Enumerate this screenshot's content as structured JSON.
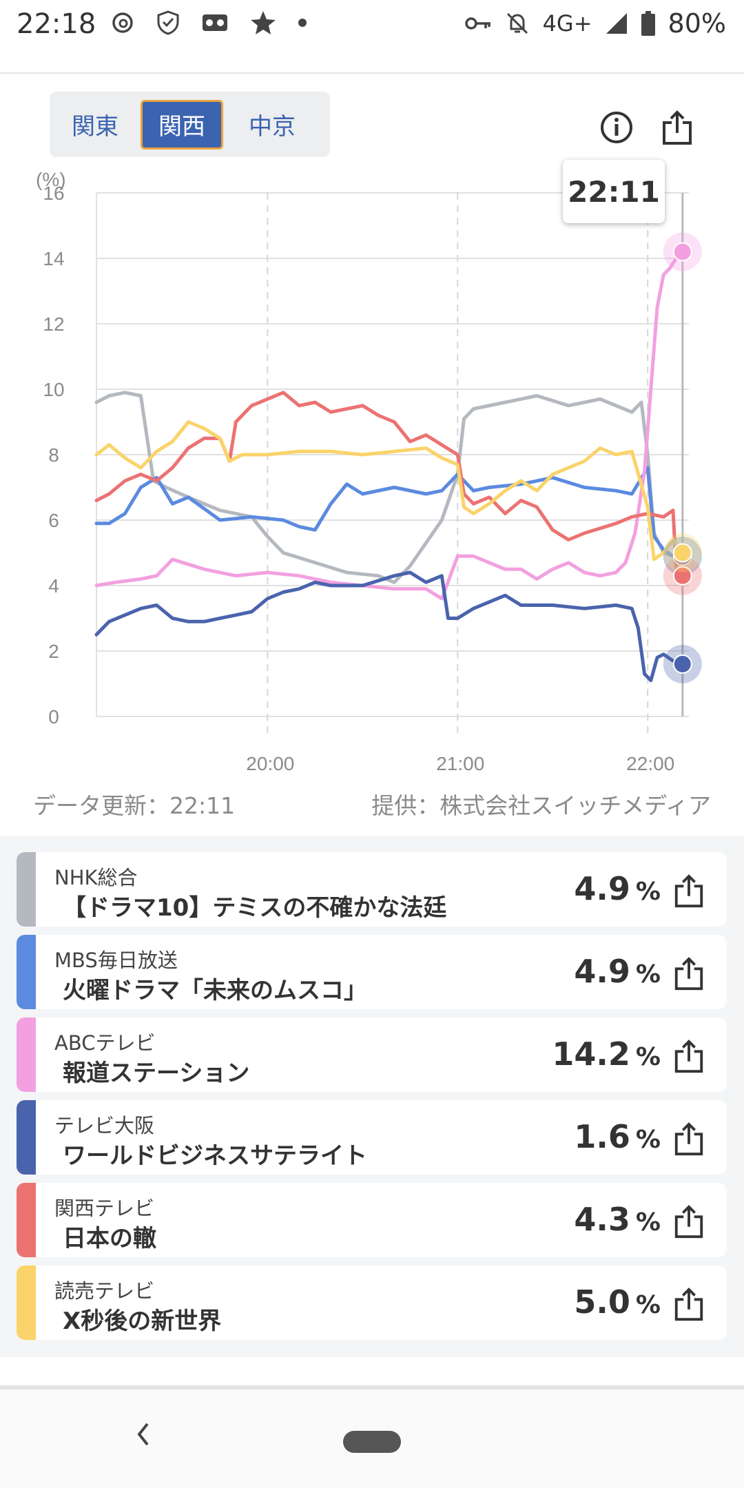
{
  "status_bar": {
    "time": "22:18",
    "network": "4G+",
    "battery": "80%",
    "icons": [
      "threads-icon",
      "shield-check-icon",
      "voicemail-icon",
      "star-icon",
      "dot-icon",
      "key-icon",
      "bell-off-icon",
      "signal-icon",
      "battery-icon"
    ]
  },
  "region_tabs": [
    {
      "label": "関東"
    },
    {
      "label": "関西"
    },
    {
      "label": "中京"
    }
  ],
  "selected_region": "関西",
  "chart_tooltip": "22:11",
  "meta": {
    "updated": "データ更新：22:11",
    "provider": "提供：株式会社スイッチメディア"
  },
  "chart_data": {
    "type": "line",
    "ylabel": "(%)",
    "ylim": [
      0,
      16
    ],
    "yticks": [
      0,
      2,
      4,
      6,
      8,
      10,
      12,
      14,
      16
    ],
    "xtick_labels": [
      "20:00",
      "21:00",
      "22:00"
    ],
    "x_range": [
      "19:06",
      "22:11"
    ],
    "grid": true,
    "series": [
      {
        "name": "NHK総合",
        "color": "#b4b8bf",
        "points": [
          [
            "19:06",
            9.6
          ],
          [
            "19:10",
            9.8
          ],
          [
            "19:15",
            9.9
          ],
          [
            "19:20",
            9.8
          ],
          [
            "19:24",
            7.2
          ],
          [
            "19:28",
            7.0
          ],
          [
            "19:35",
            6.7
          ],
          [
            "19:45",
            6.3
          ],
          [
            "19:55",
            6.1
          ],
          [
            "20:00",
            5.5
          ],
          [
            "20:05",
            5.0
          ],
          [
            "20:15",
            4.7
          ],
          [
            "20:25",
            4.4
          ],
          [
            "20:35",
            4.3
          ],
          [
            "20:40",
            4.1
          ],
          [
            "20:45",
            4.6
          ],
          [
            "20:50",
            5.3
          ],
          [
            "20:55",
            6.0
          ],
          [
            "21:00",
            7.4
          ],
          [
            "21:02",
            9.1
          ],
          [
            "21:05",
            9.4
          ],
          [
            "21:15",
            9.6
          ],
          [
            "21:25",
            9.8
          ],
          [
            "21:35",
            9.5
          ],
          [
            "21:45",
            9.7
          ],
          [
            "21:55",
            9.3
          ],
          [
            "21:58",
            9.6
          ],
          [
            "22:00",
            8.0
          ],
          [
            "22:02",
            5.6
          ],
          [
            "22:05",
            5.0
          ],
          [
            "22:08",
            4.9
          ],
          [
            "22:11",
            4.9
          ]
        ]
      },
      {
        "name": "MBS毎日放送",
        "color": "#5b8ae0",
        "points": [
          [
            "19:06",
            5.9
          ],
          [
            "19:10",
            5.9
          ],
          [
            "19:15",
            6.2
          ],
          [
            "19:20",
            7.0
          ],
          [
            "19:25",
            7.3
          ],
          [
            "19:30",
            6.5
          ],
          [
            "19:35",
            6.7
          ],
          [
            "19:45",
            6.0
          ],
          [
            "19:55",
            6.1
          ],
          [
            "20:05",
            6.0
          ],
          [
            "20:10",
            5.8
          ],
          [
            "20:15",
            5.7
          ],
          [
            "20:20",
            6.5
          ],
          [
            "20:25",
            7.1
          ],
          [
            "20:30",
            6.8
          ],
          [
            "20:40",
            7.0
          ],
          [
            "20:50",
            6.8
          ],
          [
            "20:55",
            6.9
          ],
          [
            "21:00",
            7.4
          ],
          [
            "21:05",
            6.9
          ],
          [
            "21:10",
            7.0
          ],
          [
            "21:20",
            7.1
          ],
          [
            "21:30",
            7.3
          ],
          [
            "21:40",
            7.0
          ],
          [
            "21:50",
            6.9
          ],
          [
            "21:55",
            6.8
          ],
          [
            "22:00",
            7.6
          ],
          [
            "22:02",
            5.5
          ],
          [
            "22:05",
            5.1
          ],
          [
            "22:08",
            4.9
          ],
          [
            "22:11",
            4.9
          ]
        ]
      },
      {
        "name": "ABCテレビ",
        "color": "#f2a0e0",
        "points": [
          [
            "19:06",
            4.0
          ],
          [
            "19:12",
            4.1
          ],
          [
            "19:20",
            4.2
          ],
          [
            "19:25",
            4.3
          ],
          [
            "19:30",
            4.8
          ],
          [
            "19:40",
            4.5
          ],
          [
            "19:50",
            4.3
          ],
          [
            "20:00",
            4.4
          ],
          [
            "20:10",
            4.3
          ],
          [
            "20:20",
            4.1
          ],
          [
            "20:30",
            4.0
          ],
          [
            "20:40",
            3.9
          ],
          [
            "20:50",
            3.9
          ],
          [
            "20:55",
            3.6
          ],
          [
            "21:00",
            4.9
          ],
          [
            "21:05",
            4.9
          ],
          [
            "21:10",
            4.7
          ],
          [
            "21:15",
            4.5
          ],
          [
            "21:20",
            4.5
          ],
          [
            "21:25",
            4.2
          ],
          [
            "21:30",
            4.5
          ],
          [
            "21:35",
            4.7
          ],
          [
            "21:40",
            4.4
          ],
          [
            "21:45",
            4.3
          ],
          [
            "21:50",
            4.4
          ],
          [
            "21:53",
            4.7
          ],
          [
            "21:56",
            5.6
          ],
          [
            "21:59",
            7.5
          ],
          [
            "22:01",
            10.0
          ],
          [
            "22:03",
            12.5
          ],
          [
            "22:05",
            13.5
          ],
          [
            "22:07",
            13.7
          ],
          [
            "22:09",
            14.0
          ],
          [
            "22:11",
            14.2
          ]
        ]
      },
      {
        "name": "テレビ大阪",
        "color": "#4a63ad",
        "points": [
          [
            "19:06",
            2.5
          ],
          [
            "19:10",
            2.9
          ],
          [
            "19:15",
            3.1
          ],
          [
            "19:20",
            3.3
          ],
          [
            "19:25",
            3.4
          ],
          [
            "19:30",
            3.0
          ],
          [
            "19:35",
            2.9
          ],
          [
            "19:40",
            2.9
          ],
          [
            "19:45",
            3.0
          ],
          [
            "19:50",
            3.1
          ],
          [
            "19:55",
            3.2
          ],
          [
            "20:00",
            3.6
          ],
          [
            "20:05",
            3.8
          ],
          [
            "20:10",
            3.9
          ],
          [
            "20:15",
            4.1
          ],
          [
            "20:20",
            4.0
          ],
          [
            "20:30",
            4.0
          ],
          [
            "20:40",
            4.3
          ],
          [
            "20:45",
            4.4
          ],
          [
            "20:50",
            4.1
          ],
          [
            "20:55",
            4.3
          ],
          [
            "20:57",
            3.0
          ],
          [
            "21:00",
            3.0
          ],
          [
            "21:05",
            3.3
          ],
          [
            "21:10",
            3.5
          ],
          [
            "21:15",
            3.7
          ],
          [
            "21:20",
            3.4
          ],
          [
            "21:30",
            3.4
          ],
          [
            "21:40",
            3.3
          ],
          [
            "21:50",
            3.4
          ],
          [
            "21:55",
            3.3
          ],
          [
            "21:57",
            2.7
          ],
          [
            "21:59",
            1.3
          ],
          [
            "22:01",
            1.1
          ],
          [
            "22:03",
            1.8
          ],
          [
            "22:05",
            1.9
          ],
          [
            "22:08",
            1.7
          ],
          [
            "22:11",
            1.6
          ]
        ]
      },
      {
        "name": "関西テレビ",
        "color": "#ec7272",
        "points": [
          [
            "19:06",
            6.6
          ],
          [
            "19:10",
            6.8
          ],
          [
            "19:15",
            7.2
          ],
          [
            "19:20",
            7.4
          ],
          [
            "19:25",
            7.2
          ],
          [
            "19:30",
            7.6
          ],
          [
            "19:35",
            8.2
          ],
          [
            "19:40",
            8.5
          ],
          [
            "19:45",
            8.5
          ],
          [
            "19:48",
            7.8
          ],
          [
            "19:50",
            9.0
          ],
          [
            "19:55",
            9.5
          ],
          [
            "20:00",
            9.7
          ],
          [
            "20:05",
            9.9
          ],
          [
            "20:10",
            9.5
          ],
          [
            "20:15",
            9.6
          ],
          [
            "20:20",
            9.3
          ],
          [
            "20:30",
            9.5
          ],
          [
            "20:35",
            9.2
          ],
          [
            "20:40",
            9.0
          ],
          [
            "20:45",
            8.4
          ],
          [
            "20:50",
            8.6
          ],
          [
            "20:55",
            8.3
          ],
          [
            "21:00",
            8.0
          ],
          [
            "21:02",
            6.8
          ],
          [
            "21:05",
            6.5
          ],
          [
            "21:10",
            6.7
          ],
          [
            "21:15",
            6.2
          ],
          [
            "21:20",
            6.6
          ],
          [
            "21:25",
            6.4
          ],
          [
            "21:30",
            5.7
          ],
          [
            "21:35",
            5.4
          ],
          [
            "21:40",
            5.6
          ],
          [
            "21:50",
            5.9
          ],
          [
            "21:55",
            6.1
          ],
          [
            "22:00",
            6.2
          ],
          [
            "22:05",
            6.1
          ],
          [
            "22:08",
            6.3
          ],
          [
            "22:09",
            4.5
          ],
          [
            "22:11",
            4.3
          ]
        ]
      },
      {
        "name": "読売テレビ",
        "color": "#fad36a",
        "points": [
          [
            "19:06",
            8.0
          ],
          [
            "19:10",
            8.3
          ],
          [
            "19:15",
            7.9
          ],
          [
            "19:20",
            7.6
          ],
          [
            "19:25",
            8.1
          ],
          [
            "19:30",
            8.4
          ],
          [
            "19:35",
            9.0
          ],
          [
            "19:40",
            8.8
          ],
          [
            "19:45",
            8.5
          ],
          [
            "19:48",
            7.8
          ],
          [
            "19:52",
            8.0
          ],
          [
            "20:00",
            8.0
          ],
          [
            "20:10",
            8.1
          ],
          [
            "20:20",
            8.1
          ],
          [
            "20:30",
            8.0
          ],
          [
            "20:40",
            8.1
          ],
          [
            "20:50",
            8.2
          ],
          [
            "20:55",
            7.9
          ],
          [
            "21:00",
            7.7
          ],
          [
            "21:02",
            6.4
          ],
          [
            "21:05",
            6.2
          ],
          [
            "21:10",
            6.5
          ],
          [
            "21:15",
            6.9
          ],
          [
            "21:20",
            7.2
          ],
          [
            "21:25",
            6.9
          ],
          [
            "21:30",
            7.4
          ],
          [
            "21:40",
            7.8
          ],
          [
            "21:45",
            8.2
          ],
          [
            "21:50",
            8.0
          ],
          [
            "21:55",
            8.1
          ],
          [
            "22:00",
            6.4
          ],
          [
            "22:02",
            4.8
          ],
          [
            "22:05",
            5.0
          ],
          [
            "22:08",
            5.4
          ],
          [
            "22:11",
            5.0
          ]
        ]
      }
    ]
  },
  "programs": [
    {
      "station": "NHK総合",
      "title": "【ドラマ10】テミスの不確かな法廷",
      "rating": "4.9",
      "unit": "%",
      "color": "#b4b8bf"
    },
    {
      "station": "MBS毎日放送",
      "title": "火曜ドラマ「未来のムスコ」",
      "rating": "4.9",
      "unit": "%",
      "color": "#5b8ae0"
    },
    {
      "station": "ABCテレビ",
      "title": "報道ステーション",
      "rating": "14.2",
      "unit": "%",
      "color": "#f2a0e0"
    },
    {
      "station": "テレビ大阪",
      "title": "ワールドビジネスサテライト",
      "rating": "1.6",
      "unit": "%",
      "color": "#4a63ad"
    },
    {
      "station": "関西テレビ",
      "title": "日本の轍",
      "rating": "4.3",
      "unit": "%",
      "color": "#ec7272"
    },
    {
      "station": "読売テレビ",
      "title": "X秒後の新世界",
      "rating": "5.0",
      "unit": "%",
      "color": "#fad36a"
    }
  ]
}
